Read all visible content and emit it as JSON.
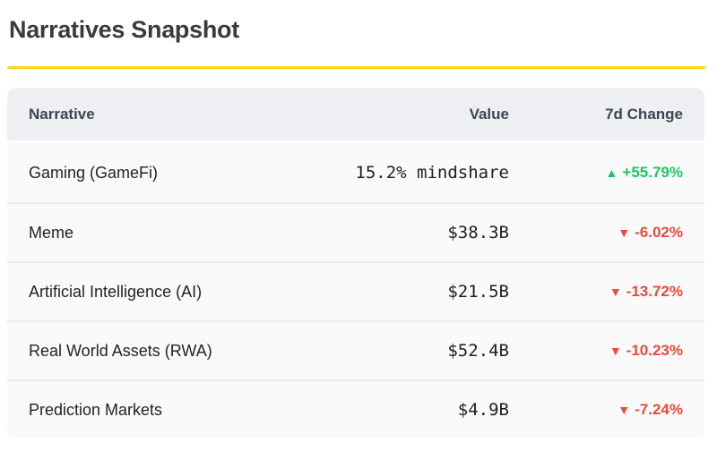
{
  "page": {
    "title": "Narratives Snapshot"
  },
  "theme": {
    "accent_yellow": "#FFD717",
    "header_bg": "#EDEFF2",
    "row_bg": "#FAFAFB",
    "up_green": "#22C55E",
    "down_red": "#E74C3C"
  },
  "icons": {
    "up_icon": "▲",
    "down_icon": "▼"
  },
  "table": {
    "headers": {
      "narrative": "Narrative",
      "value": "Value",
      "change": "7d Change"
    },
    "rows": [
      {
        "narrative": "Gaming (GameFi)",
        "value": "15.2% mindshare",
        "change": "+55.79%",
        "direction": "up"
      },
      {
        "narrative": "Meme",
        "value": "$38.3B",
        "change": "-6.02%",
        "direction": "down"
      },
      {
        "narrative": "Artificial Intelligence (AI)",
        "value": "$21.5B",
        "change": "-13.72%",
        "direction": "down"
      },
      {
        "narrative": "Real World Assets (RWA)",
        "value": "$52.4B",
        "change": "-10.23%",
        "direction": "down"
      },
      {
        "narrative": "Prediction Markets",
        "value": "$4.9B",
        "change": "-7.24%",
        "direction": "down"
      }
    ]
  }
}
